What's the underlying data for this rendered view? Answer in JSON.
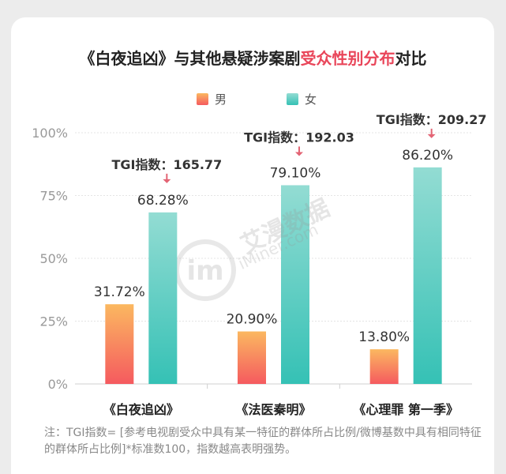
{
  "title": {
    "prefix": "《白夜追凶》与其他悬疑涉案剧",
    "highlight": "受众性别分布",
    "suffix": "对比"
  },
  "chart_data": {
    "type": "bar",
    "categories": [
      "《白夜追凶》",
      "《法医秦明》",
      "《心理罪 第一季》"
    ],
    "series": [
      {
        "name": "男",
        "values": [
          31.72,
          20.9,
          13.8
        ],
        "labels": [
          "31.72%",
          "20.90%",
          "13.80%"
        ],
        "color_top": "#fbb860",
        "color_bottom": "#f55a5f"
      },
      {
        "name": "女",
        "values": [
          68.28,
          79.1,
          86.2
        ],
        "labels": [
          "68.28%",
          "79.10%",
          "86.20%"
        ],
        "color_top": "#93dcd3",
        "color_bottom": "#35c1b5"
      }
    ],
    "yticks": [
      "0%",
      "25%",
      "50%",
      "75%",
      "100%"
    ],
    "ylim": [
      0,
      100
    ],
    "tgi_labels": [
      "TGI指数：165.77",
      "TGI指数：192.03",
      "TGI指数：209.27"
    ],
    "legend_position": "top-center",
    "grid": true
  },
  "watermark": {
    "main": "艾漫数据",
    "sub": "iMiner.com",
    "logo": "im"
  },
  "colors": {
    "arrow": "#e36474",
    "highlight": "#e9465a"
  },
  "note": "注：TGI指数= [参考电视剧受众中具有某一特征的群体所占比例/微博基数中具有相同特征的群体所占比例]*标准数100，指数越高表明强势。"
}
